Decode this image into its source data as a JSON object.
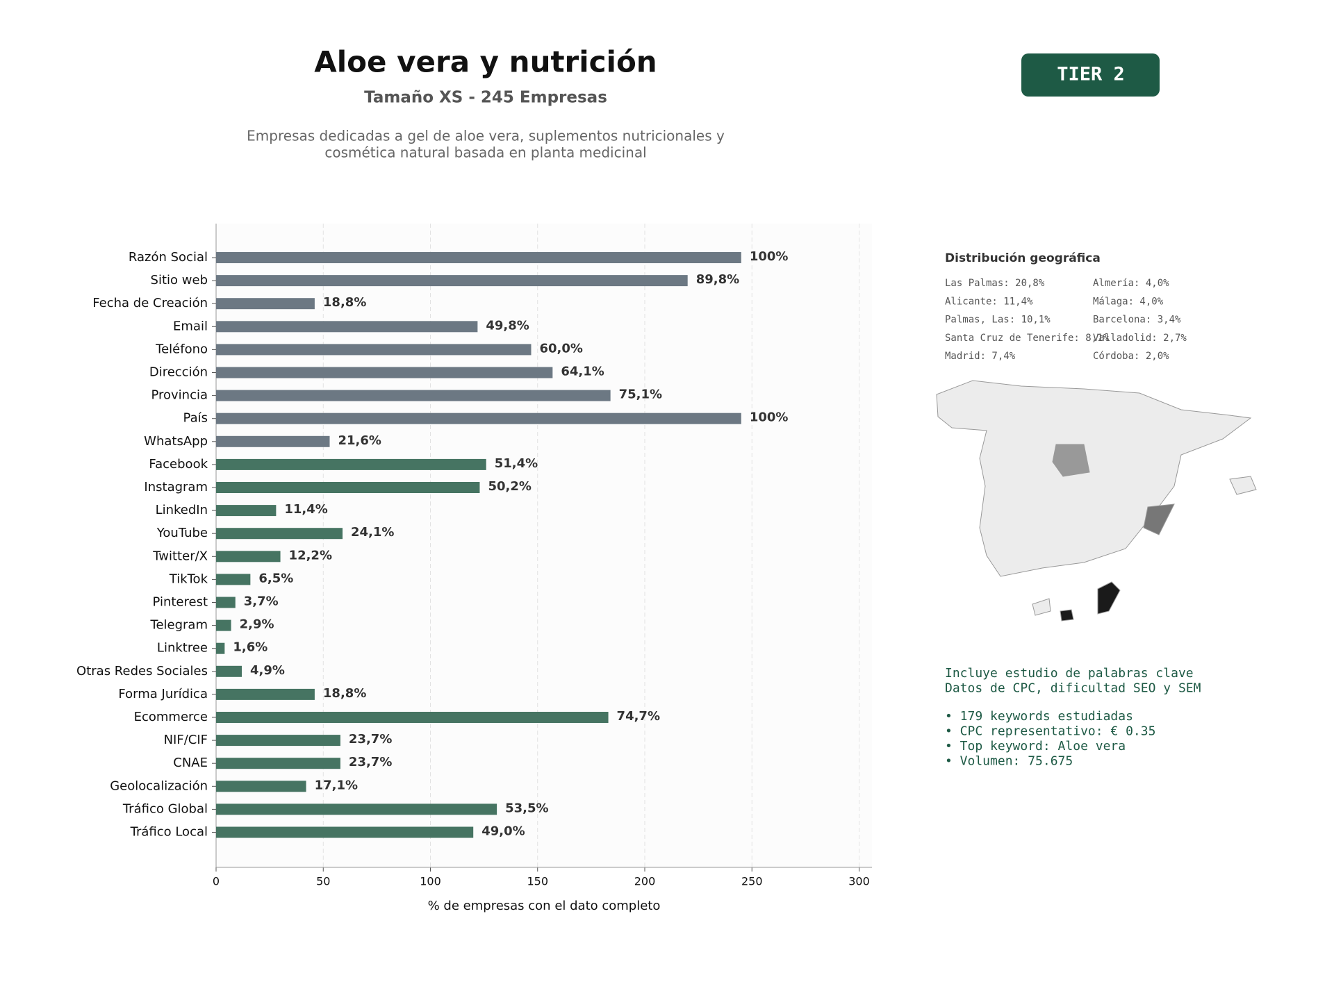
{
  "chart_data": {
    "type": "barh",
    "title": "Aloe vera y nutrición",
    "subtitle": "Tamaño XS - 245 Empresas",
    "description": [
      "Empresas dedicadas a gel de aloe vera, suplementos nutricionales y",
      "cosmética natural basada en planta medicinal"
    ],
    "badge": "TIER 2",
    "xlabel": "% de empresas con el dato completo",
    "categories": [
      "Razón Social",
      "Sitio web",
      "Fecha de Creación",
      "Email",
      "Teléfono",
      "Dirección",
      "Provincia",
      "País",
      "WhatsApp",
      "Facebook",
      "Instagram",
      "LinkedIn",
      "YouTube",
      "Twitter/X",
      "TikTok",
      "Pinterest",
      "Telegram",
      "Linktree",
      "Otras Redes Sociales",
      "Forma Jurídica",
      "Ecommerce",
      "NIF/CIF",
      "CNAE",
      "Geolocalización",
      "Tráfico Global",
      "Tráfico Local"
    ],
    "values": [
      245,
      220,
      46,
      122,
      147,
      157,
      184,
      245,
      53,
      126,
      123,
      28,
      59,
      30,
      16,
      9,
      7,
      4,
      12,
      46,
      183,
      58,
      58,
      42,
      131,
      120
    ],
    "value_labels": [
      "100%",
      "89,8%",
      "18,8%",
      "49,8%",
      "60,0%",
      "64,1%",
      "75,1%",
      "100%",
      "21,6%",
      "51,4%",
      "50,2%",
      "11,4%",
      "24,1%",
      "12,2%",
      "6,5%",
      "3,7%",
      "2,9%",
      "1,6%",
      "4,9%",
      "18,8%",
      "74,7%",
      "23,7%",
      "23,7%",
      "17,1%",
      "53,5%",
      "49,0%"
    ],
    "colors": [
      "#6c7883",
      "#6c7883",
      "#6c7883",
      "#6c7883",
      "#6c7883",
      "#6c7883",
      "#6c7883",
      "#6c7883",
      "#6c7883",
      "#467462",
      "#467462",
      "#467462",
      "#467462",
      "#467462",
      "#467462",
      "#467462",
      "#467462",
      "#467462",
      "#467462",
      "#467462",
      "#467462",
      "#467462",
      "#467462",
      "#467462",
      "#467462",
      "#467462"
    ],
    "xlim": [
      0,
      306
    ],
    "xticks": [
      0,
      50,
      100,
      150,
      200,
      250,
      300
    ],
    "grid": true,
    "geo_distribution": {
      "title": "Distribución geográfica",
      "entries": [
        "Las Palmas: 20,8%",
        "Alicante: 11,4%",
        "Palmas, Las: 10,1%",
        "Santa Cruz de Tenerife: 8,1%",
        "Madrid: 7,4%",
        "Almería: 4,0%",
        "Málaga: 4,0%",
        "Barcelona: 3,4%",
        "Valladolid: 2,7%",
        "Córdoba: 2,0%"
      ]
    },
    "keywords": {
      "intro": [
        "Incluye estudio de palabras clave",
        "Datos de CPC, dificultad SEO y SEM"
      ],
      "bullets": [
        "• 179 keywords estudiadas",
        "• CPC representativo: € 0.35",
        "• Top keyword: Aloe vera",
        "• Volumen: 75.675"
      ]
    }
  }
}
